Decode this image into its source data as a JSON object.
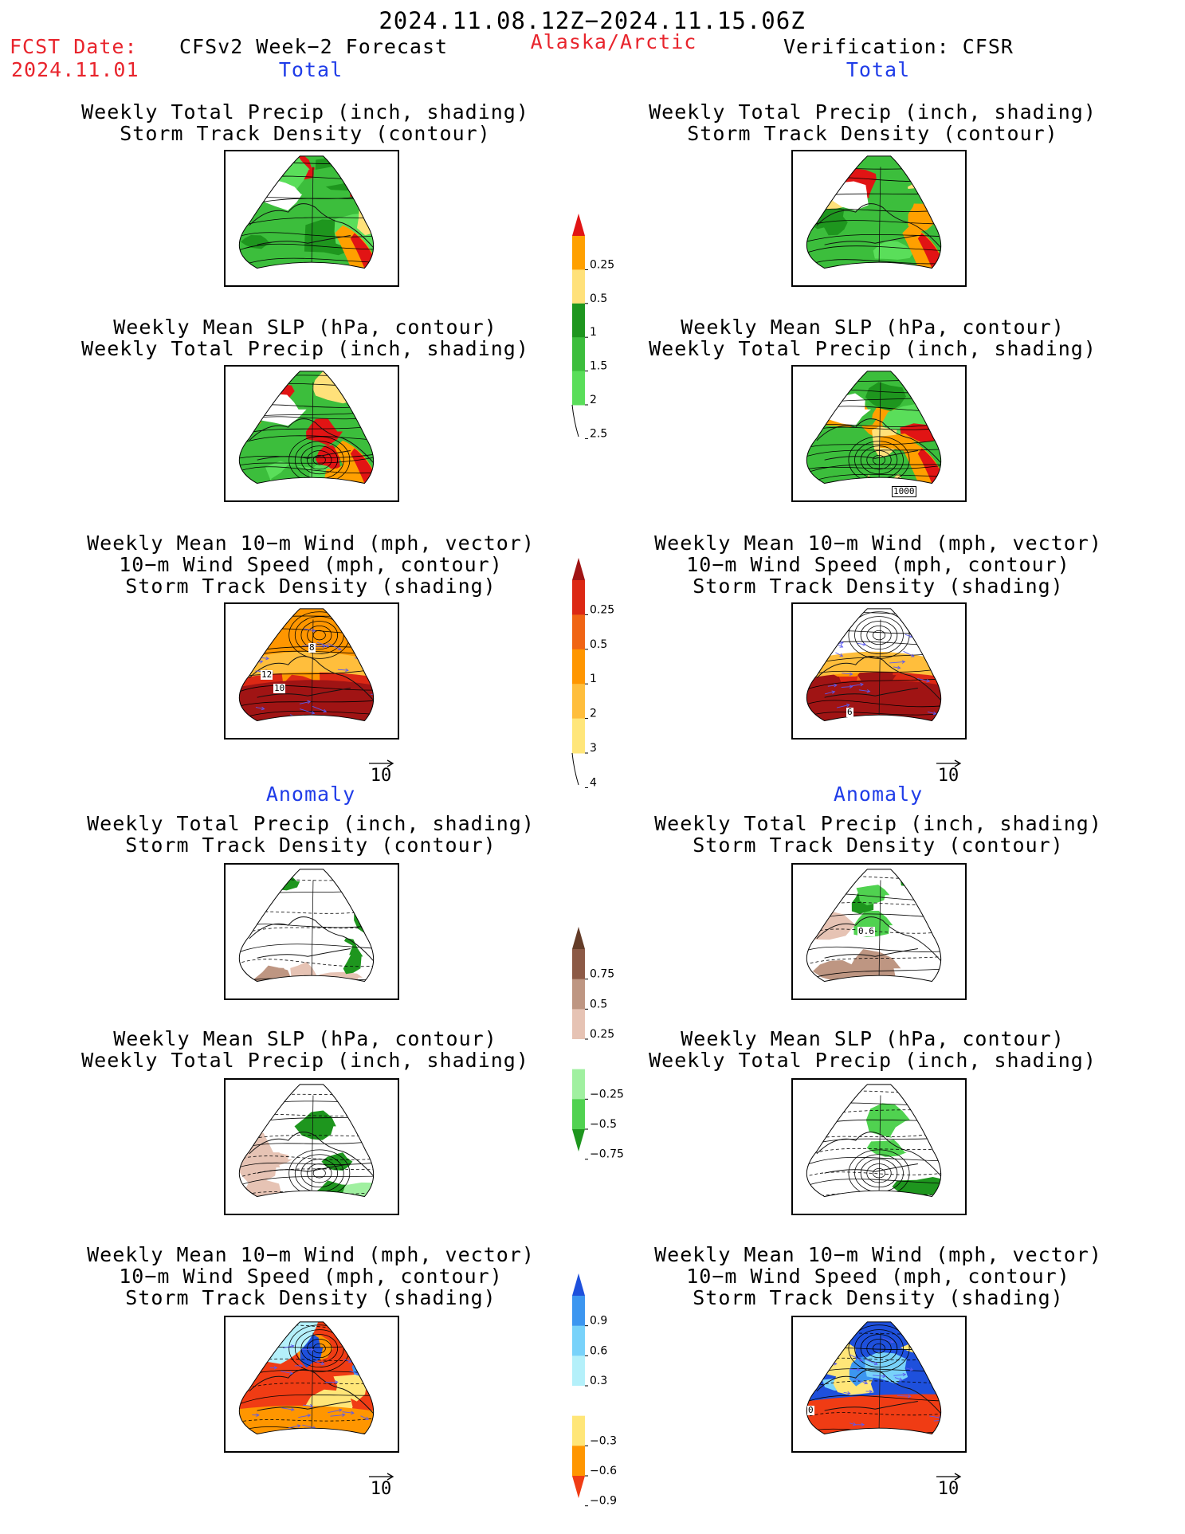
{
  "header": {
    "date_range": "2024.11.08.12Z−2024.11.15.06Z",
    "fcst_label": "FCST Date:",
    "fcst_date": "2024.11.01",
    "model": "CFSv2 Week−2 Forecast",
    "region": "Alaska/Arctic",
    "verification": "Verification: CFSR"
  },
  "sections": {
    "total": "Total",
    "anomaly": "Anomaly"
  },
  "panels": {
    "precip_storm": [
      "Weekly Total Precip (inch, shading)",
      "Storm Track Density (contour)"
    ],
    "slp_precip": [
      "Weekly Mean SLP (hPa, contour)",
      "Weekly Total Precip (inch, shading)"
    ],
    "wind_storm": [
      "Weekly Mean 10−m Wind (mph, vector)",
      "10−m Wind Speed (mph, contour)",
      "Storm Track Density (shading)"
    ]
  },
  "ref_vector_label": "10",
  "contour_labels": {
    "slp_verif": "1000",
    "wind_fcst_a": "8",
    "wind_fcst_b": "12",
    "wind_fcst_c": "10",
    "wind_verif": "6",
    "precip_anom_verif": "0.6",
    "wind_anom_verif": "0"
  },
  "colorbars": {
    "precip_total": {
      "ticks": [
        "0.25",
        "0.5",
        "1",
        "1.5",
        "2",
        "2.5"
      ],
      "colors": [
        "#b4f0b4",
        "#5ade5a",
        "#3cbe3c",
        "#1e961e",
        "#ffe17a",
        "#ffa000",
        "#e11414"
      ]
    },
    "storm_total": {
      "ticks": [
        "0.25",
        "0.5",
        "1",
        "2",
        "3",
        "4"
      ],
      "colors": [
        "#fffaaa",
        "#ffe67a",
        "#ffbe3c",
        "#ff9600",
        "#f06414",
        "#dc2814",
        "#a01414"
      ]
    },
    "precip_anom": {
      "ticks": [
        "0.75",
        "0.5",
        "0.25",
        "−0.25",
        "−0.5",
        "−0.75"
      ],
      "colors": [
        "#1e961e",
        "#50d250",
        "#a0f0a0",
        "#ffffff",
        "#e6c3b4",
        "#be9682",
        "#8c5a46",
        "#643c28"
      ]
    },
    "storm_anom": {
      "ticks": [
        "0.9",
        "0.6",
        "0.3",
        "−0.3",
        "−0.6",
        "−0.9"
      ],
      "colors": [
        "#f03c14",
        "#ff9600",
        "#ffe678",
        "#ffffff",
        "#b4f0fa",
        "#78d2fa",
        "#3c96f0",
        "#1e50dc"
      ]
    }
  }
}
